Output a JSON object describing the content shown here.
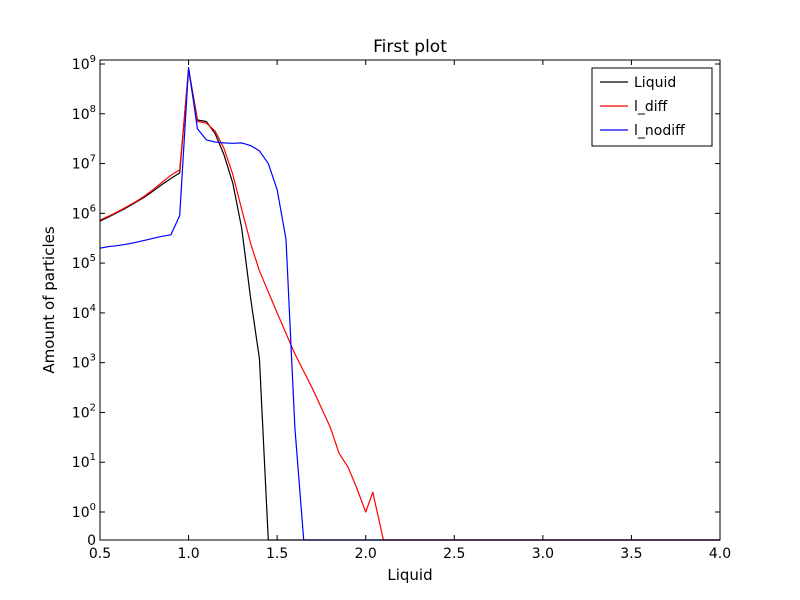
{
  "chart_data": {
    "type": "line",
    "title": "First plot",
    "xlabel": "Liquid",
    "ylabel": "Amount of particles",
    "xlim": [
      0.5,
      4.0
    ],
    "y_scale": "symlog",
    "y_linthresh": 1,
    "ylim": [
      0,
      1000000000
    ],
    "x_ticks": [
      0.5,
      1.0,
      1.5,
      2.0,
      2.5,
      3.0,
      3.5,
      4.0
    ],
    "x_tick_labels": [
      "0.5",
      "1.0",
      "1.5",
      "2.0",
      "2.5",
      "3.0",
      "3.5",
      "4.0"
    ],
    "y_ticks": [
      {
        "value": 0,
        "base": "0",
        "exp": ""
      },
      {
        "value": 1,
        "base": "10",
        "exp": "0"
      },
      {
        "value": 10,
        "base": "10",
        "exp": "1"
      },
      {
        "value": 100,
        "base": "10",
        "exp": "2"
      },
      {
        "value": 1000,
        "base": "10",
        "exp": "3"
      },
      {
        "value": 10000,
        "base": "10",
        "exp": "4"
      },
      {
        "value": 100000,
        "base": "10",
        "exp": "5"
      },
      {
        "value": 1000000,
        "base": "10",
        "exp": "6"
      },
      {
        "value": 10000000,
        "base": "10",
        "exp": "7"
      },
      {
        "value": 100000000,
        "base": "10",
        "exp": "8"
      },
      {
        "value": 1000000000,
        "base": "10",
        "exp": "9"
      }
    ],
    "grid": false,
    "legend_position": "top-right",
    "series": [
      {
        "name": "Liquid",
        "color": "#000000",
        "x": [
          0.5,
          0.55,
          0.6,
          0.65,
          0.7,
          0.75,
          0.8,
          0.85,
          0.9,
          0.95,
          1.0,
          1.05,
          1.1,
          1.15,
          1.2,
          1.25,
          1.3,
          1.35,
          1.4,
          1.45,
          1.5,
          1.6,
          2.0,
          2.5,
          3.0,
          3.5,
          4.0
        ],
        "y": [
          700000,
          850000,
          1050000,
          1300000,
          1650000,
          2100000,
          2800000,
          3800000,
          5000000,
          6500000,
          800000000,
          75000000,
          70000000,
          40000000,
          15000000,
          4000000,
          500000,
          20000,
          1200,
          0,
          0,
          0,
          0,
          0,
          0,
          0,
          0
        ]
      },
      {
        "name": "l_diff",
        "color": "#ff0000",
        "x": [
          0.5,
          0.55,
          0.6,
          0.65,
          0.7,
          0.75,
          0.8,
          0.85,
          0.9,
          0.95,
          1.0,
          1.05,
          1.1,
          1.15,
          1.2,
          1.25,
          1.3,
          1.35,
          1.4,
          1.5,
          1.6,
          1.7,
          1.8,
          1.85,
          1.9,
          1.95,
          2.0,
          2.04,
          2.1,
          2.5,
          3.0,
          3.5,
          4.0
        ],
        "y": [
          730000,
          880000,
          1080000,
          1350000,
          1700000,
          2200000,
          3000000,
          4200000,
          5800000,
          7500000,
          750000000,
          70000000,
          65000000,
          45000000,
          20000000,
          6000000,
          1200000,
          250000,
          70000,
          10000,
          1500,
          300,
          50,
          15,
          8,
          3,
          1,
          2.5,
          0,
          0,
          0,
          0,
          0
        ]
      },
      {
        "name": "l_nodiff",
        "color": "#0000ff",
        "x": [
          0.5,
          0.55,
          0.6,
          0.65,
          0.7,
          0.75,
          0.8,
          0.85,
          0.9,
          0.95,
          1.0,
          1.05,
          1.1,
          1.15,
          1.2,
          1.25,
          1.3,
          1.35,
          1.4,
          1.45,
          1.5,
          1.55,
          1.6,
          1.65,
          1.7,
          2.0,
          2.5,
          3.0,
          3.5,
          4.0
        ],
        "y": [
          200000,
          215000,
          225000,
          240000,
          260000,
          285000,
          315000,
          345000,
          370000,
          900000,
          850000000,
          50000000,
          30000000,
          27000000,
          26000000,
          25500000,
          26000000,
          23000000,
          18000000,
          10000000,
          3000000,
          300000,
          50,
          0,
          0,
          0,
          0,
          0,
          0,
          0
        ]
      }
    ]
  }
}
